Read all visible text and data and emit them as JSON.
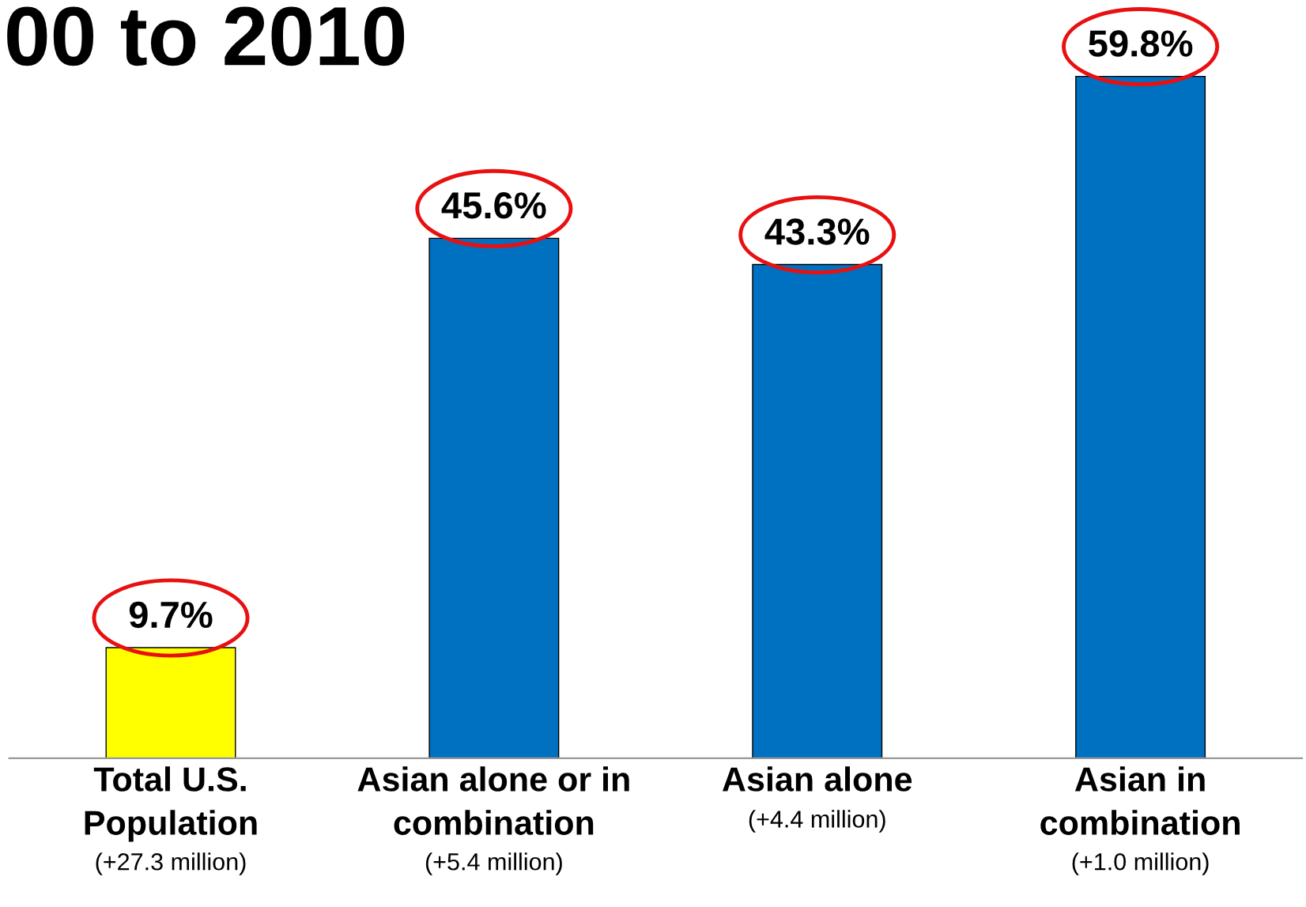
{
  "chart_data": {
    "type": "bar",
    "title": "00 to 2010",
    "categories": [
      "Total U.S.\nPopulation\n(+27.3 million)",
      "Asian alone or in\ncombination\n(+5.4 million)",
      "Asian alone\n(+4.4 million)",
      "Asian in\ncombination\n(+1.0 million)"
    ],
    "values": [
      9.7,
      45.6,
      43.3,
      59.8
    ],
    "colors": [
      "#ffff00",
      "#0070c0",
      "#0070c0",
      "#0070c0"
    ],
    "value_labels": [
      "9.7%",
      "45.6%",
      "43.3%",
      "59.8%"
    ],
    "tick_labels": "x"
  }
}
